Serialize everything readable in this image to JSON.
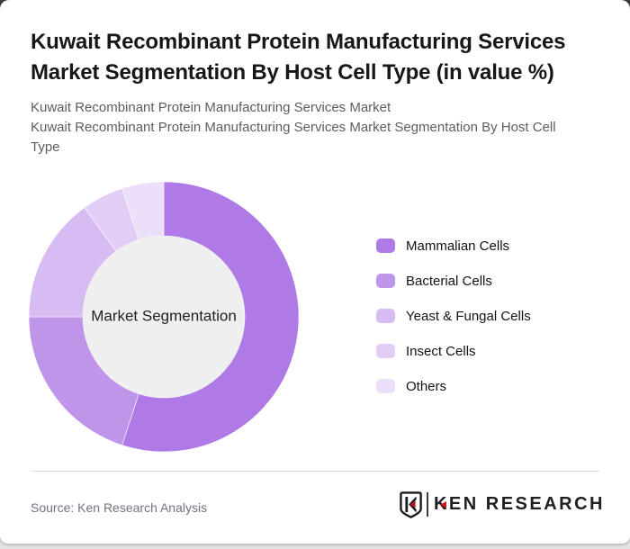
{
  "window": {
    "background_top": "#3b3b42",
    "background_bottom": "#e3e3e6",
    "card_background": "#ffffff"
  },
  "header": {
    "title": "Kuwait Recombinant Protein Manufacturing Services Market Segmentation By Host Cell Type (in value %)",
    "subtitles": [
      "Kuwait Recombinant Protein Manufacturing Services Market",
      "Kuwait Recombinant Protein Manufacturing Services Market Segmentation By Host Cell Type"
    ]
  },
  "chart_data": {
    "type": "pie",
    "variant": "donut",
    "title": "Market Segmentation By Host Cell Type",
    "unit": "value %",
    "center_label": "Market Segmentation",
    "center_fill": "#efefef",
    "start_angle_deg": 0,
    "direction": "clockwise",
    "outer_radius": 150,
    "inner_radius": 90,
    "legend_position": "right",
    "series": [
      {
        "name": "Mammalian Cells",
        "value": 55,
        "color": "#af7ae6"
      },
      {
        "name": "Bacterial Cells",
        "value": 20,
        "color": "#bf95ea"
      },
      {
        "name": "Yeast & Fungal Cells",
        "value": 15,
        "color": "#d6bcf2"
      },
      {
        "name": "Insect Cells",
        "value": 5,
        "color": "#e1cdf6"
      },
      {
        "name": "Others",
        "value": 5,
        "color": "#ecdff9"
      }
    ]
  },
  "footer": {
    "source_text": "Source: Ken Research Analysis",
    "logo": {
      "badge_letter": "K",
      "brand_text": "KEN RESEARCH",
      "accent_color": "#c4161c",
      "text_color": "#202024"
    }
  }
}
